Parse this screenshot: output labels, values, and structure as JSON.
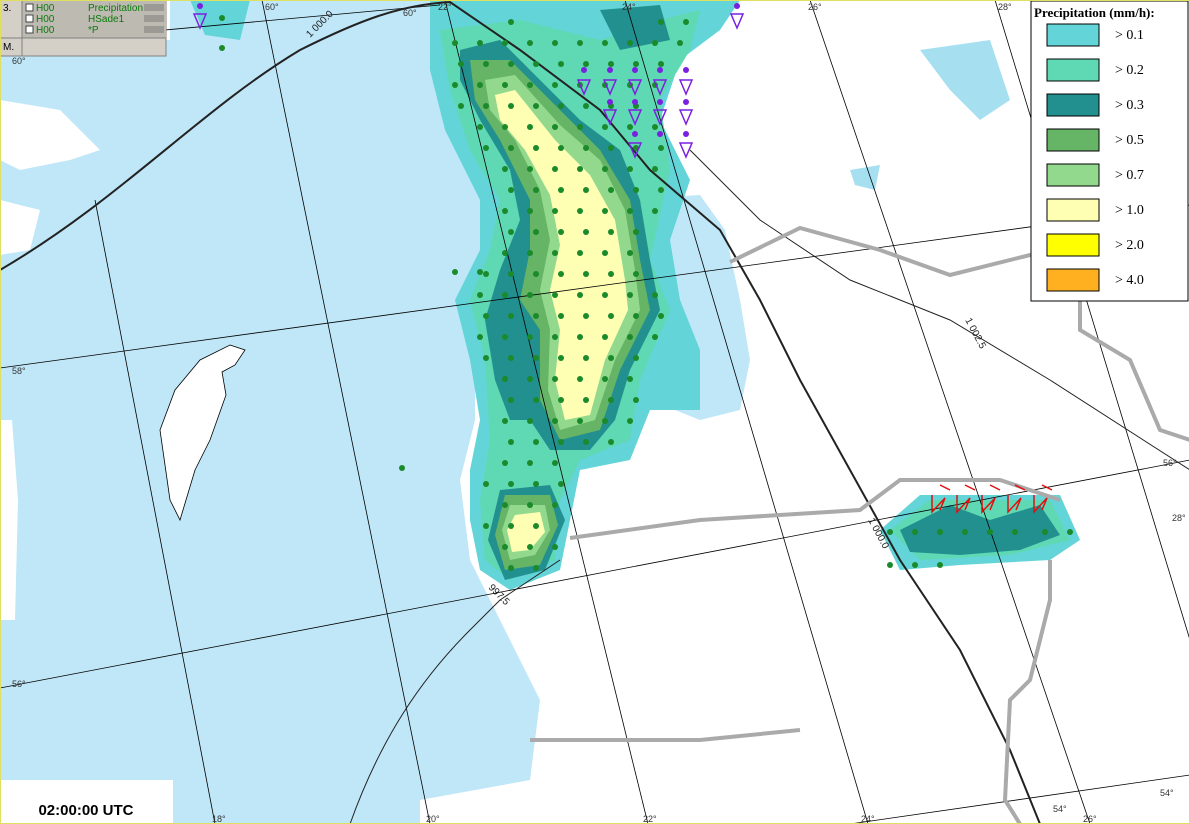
{
  "layers_panel": {
    "index": "3.",
    "rows": [
      {
        "run": "H00",
        "name": "Precipitation"
      },
      {
        "run": "H00",
        "name": "HSade1"
      },
      {
        "run": "H00",
        "name": "*P"
      }
    ],
    "footer": "M."
  },
  "legend": {
    "title": "Precipitation (mm/h):",
    "items": [
      {
        "label": "> 0.1",
        "color": "#63d4d8"
      },
      {
        "label": "> 0.2",
        "color": "#5fd8b4"
      },
      {
        "label": "> 0.3",
        "color": "#22908e"
      },
      {
        "label": "> 0.5",
        "color": "#66b466"
      },
      {
        "label": "> 0.7",
        "color": "#92d98e"
      },
      {
        "label": "> 1.0",
        "color": "#ffffb4"
      },
      {
        "label": "> 2.0",
        "color": "#ffff00"
      },
      {
        "label": "> 4.0",
        "color": "#ffb020"
      }
    ]
  },
  "time": "02:00:00 UTC",
  "graticule_labels": [
    "60°",
    "60°",
    "22°",
    "24°",
    "26°",
    "28°",
    "60°",
    "58°",
    "56°",
    "18°",
    "20°",
    "22°",
    "24°",
    "26°",
    "54°",
    "54°",
    "56°",
    "28°"
  ],
  "isobar_labels": [
    "1 000.0",
    "1 002.5",
    "1 000.0",
    "997.5"
  ]
}
